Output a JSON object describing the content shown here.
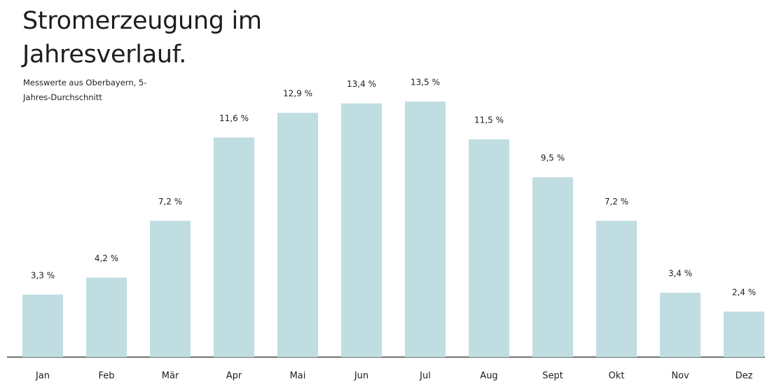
{
  "chart_data": {
    "type": "bar",
    "title": "Stromerzeugung im Jahresverlauf.",
    "subtitle": "Messwerte aus Oberbayern, 5-Jahres-Durchschnitt",
    "categories": [
      "Jan",
      "Feb",
      "Mär",
      "Apr",
      "Mai",
      "Jun",
      "Jul",
      "Aug",
      "Sept",
      "Okt",
      "Nov",
      "Dez"
    ],
    "values": [
      3.3,
      4.2,
      7.2,
      11.6,
      12.9,
      13.4,
      13.5,
      11.5,
      9.5,
      7.2,
      3.4,
      2.4
    ],
    "value_labels": [
      "3,3 %",
      "4,2 %",
      "7,2 %",
      "11,6 %",
      "12,9 %",
      "13,4 %",
      "13,5 %",
      "11,5 %",
      "9,5 %",
      "7,2 %",
      "3,4 %",
      "2,4 %"
    ],
    "color": "#c0dde2"
  }
}
